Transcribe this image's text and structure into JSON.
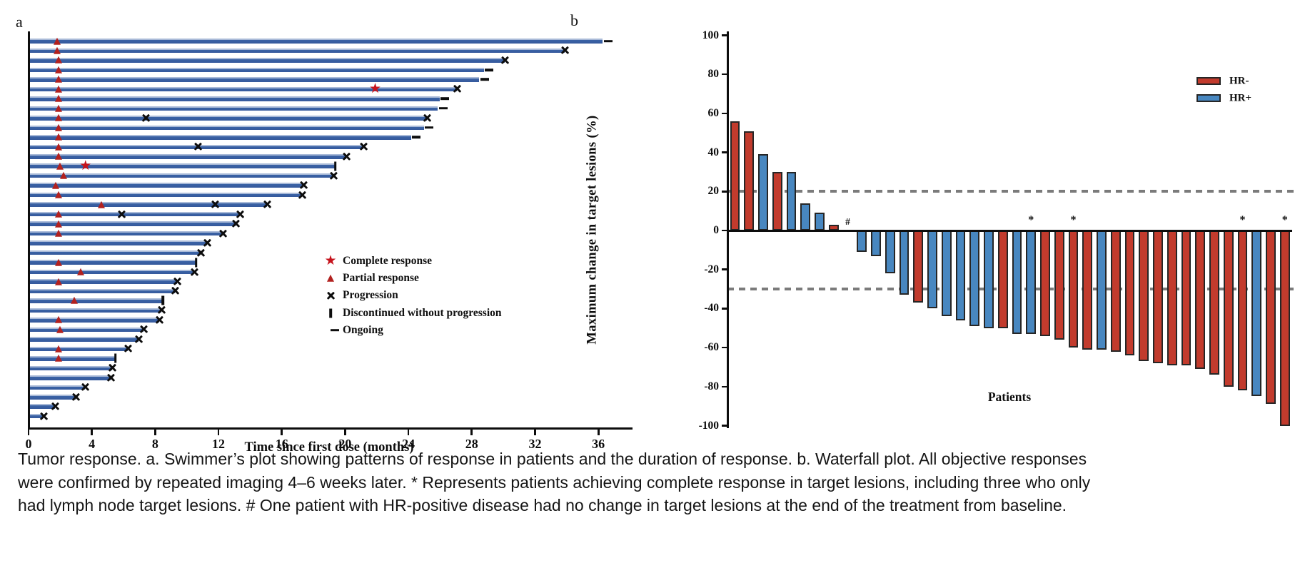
{
  "caption": "Tumor response. a. Swimmer’s plot showing patterns of response in patients and the duration of response. b. Waterfall plot. All objective responses were confirmed by repeated imaging 4–6 weeks later. * Represents patients achieving complete response in target lesions, including three who only had lymph node target lesions. # One patient with HR-positive disease had no change in target lesions at the end of the treatment from baseline.",
  "colors": {
    "swimmer_bar": "#3b63a6",
    "marker_red": "#b2211f",
    "star_red": "#c6131c",
    "marker_black": "#0d0d0d",
    "hr_negative": "#c23b2d",
    "hr_positive": "#4887c0",
    "bar_outline": "#262626",
    "threshold_gray": "#7b7b7b"
  },
  "chart_data": [
    {
      "type": "swimmer",
      "panel": "a",
      "xlabel": "Time since first dose (months)",
      "x_ticks": [
        0,
        4,
        8,
        12,
        16,
        20,
        24,
        28,
        32,
        36
      ],
      "xlim": [
        0,
        38
      ],
      "grid": false,
      "legend_position": "center-right",
      "legend": [
        {
          "marker": "star",
          "label": "Complete response"
        },
        {
          "marker": "triangle",
          "label": "Partial response"
        },
        {
          "marker": "cross",
          "label": "Progression"
        },
        {
          "marker": "vbar",
          "label": "Discontinued without progression"
        },
        {
          "marker": "dash",
          "label": "Ongoing"
        }
      ],
      "patients": [
        {
          "duration_months": 36.2,
          "partial_response_at": 1.8,
          "end": "ongoing"
        },
        {
          "duration_months": 33.8,
          "partial_response_at": 1.8,
          "end": "progression"
        },
        {
          "duration_months": 30.0,
          "partial_response_at": 1.9,
          "end": "progression"
        },
        {
          "duration_months": 28.7,
          "partial_response_at": 1.9,
          "end": "ongoing"
        },
        {
          "duration_months": 28.4,
          "partial_response_at": 1.9,
          "end": "ongoing"
        },
        {
          "duration_months": 27.0,
          "partial_response_at": 1.9,
          "complete_response_at": 21.9,
          "end": "progression"
        },
        {
          "duration_months": 25.9,
          "partial_response_at": 1.9,
          "end": "ongoing"
        },
        {
          "duration_months": 25.8,
          "partial_response_at": 1.9,
          "end": "ongoing"
        },
        {
          "duration_months": 25.1,
          "partial_response_at": 1.9,
          "progression_at": [
            7.4
          ],
          "end": "progression"
        },
        {
          "duration_months": 24.9,
          "partial_response_at": 1.9,
          "end": "ongoing"
        },
        {
          "duration_months": 24.1,
          "partial_response_at": 1.9,
          "end": "ongoing"
        },
        {
          "duration_months": 21.1,
          "partial_response_at": 1.9,
          "progression_at": [
            10.7
          ],
          "end": "progression"
        },
        {
          "duration_months": 20.0,
          "partial_response_at": 1.9,
          "end": "progression"
        },
        {
          "duration_months": 19.3,
          "partial_response_at": 2.0,
          "complete_response_at": 3.6,
          "end": "discontinued"
        },
        {
          "duration_months": 19.2,
          "partial_response_at": 2.2,
          "end": "progression"
        },
        {
          "duration_months": 17.3,
          "partial_response_at": 1.7,
          "end": "progression"
        },
        {
          "duration_months": 17.2,
          "partial_response_at": 1.9,
          "end": "progression"
        },
        {
          "duration_months": 15.0,
          "partial_response_at": 4.6,
          "progression_at": [
            11.8
          ],
          "end": "progression"
        },
        {
          "duration_months": 13.3,
          "partial_response_at": 1.9,
          "progression_at": [
            5.9
          ],
          "end": "progression"
        },
        {
          "duration_months": 13.0,
          "partial_response_at": 1.9,
          "end": "progression"
        },
        {
          "duration_months": 12.2,
          "partial_response_at": 1.9,
          "end": "progression"
        },
        {
          "duration_months": 11.2,
          "end": "progression"
        },
        {
          "duration_months": 10.8,
          "end": "progression"
        },
        {
          "duration_months": 10.5,
          "partial_response_at": 1.9,
          "end": "discontinued"
        },
        {
          "duration_months": 10.4,
          "partial_response_at": 3.3,
          "end": "progression"
        },
        {
          "duration_months": 9.3,
          "partial_response_at": 1.9,
          "end": "progression"
        },
        {
          "duration_months": 9.2,
          "end": "progression"
        },
        {
          "duration_months": 8.4,
          "partial_response_at": 2.9,
          "end": "discontinued"
        },
        {
          "duration_months": 8.3,
          "end": "progression"
        },
        {
          "duration_months": 8.2,
          "partial_response_at": 1.9,
          "end": "progression"
        },
        {
          "duration_months": 7.2,
          "partial_response_at": 2.0,
          "end": "progression"
        },
        {
          "duration_months": 6.9,
          "end": "progression"
        },
        {
          "duration_months": 6.2,
          "partial_response_at": 1.9,
          "end": "progression"
        },
        {
          "duration_months": 5.4,
          "partial_response_at": 1.9,
          "end": "discontinued"
        },
        {
          "duration_months": 5.2,
          "end": "progression"
        },
        {
          "duration_months": 5.1,
          "end": "progression"
        },
        {
          "duration_months": 3.5,
          "end": "progression"
        },
        {
          "duration_months": 2.9,
          "end": "progression"
        },
        {
          "duration_months": 1.6,
          "end": "progression"
        },
        {
          "duration_months": 0.9,
          "end": "progression"
        }
      ]
    },
    {
      "type": "bar",
      "panel": "b",
      "ylabel": "Maximum change in target lesions (%)",
      "xlabel": "Patients",
      "ylim": [
        -100,
        100
      ],
      "y_ticks": [
        100,
        80,
        60,
        40,
        20,
        0,
        -20,
        -40,
        -60,
        -80,
        -100
      ],
      "thresholds": [
        20,
        -30
      ],
      "grid": false,
      "legend_position": "top-right",
      "legend": [
        {
          "label": "HR-",
          "color": "#c23b2d"
        },
        {
          "label": "HR+",
          "color": "#4887c0"
        }
      ],
      "values": [
        {
          "value": 56,
          "group": "HR-"
        },
        {
          "value": 51,
          "group": "HR-"
        },
        {
          "value": 39,
          "group": "HR+"
        },
        {
          "value": 30,
          "group": "HR-"
        },
        {
          "value": 30,
          "group": "HR+"
        },
        {
          "value": 14,
          "group": "HR+"
        },
        {
          "value": 9,
          "group": "HR+"
        },
        {
          "value": 3,
          "group": "HR-"
        },
        {
          "value": 0,
          "group": "HR+",
          "note": "#"
        },
        {
          "value": -11,
          "group": "HR+"
        },
        {
          "value": -13,
          "group": "HR+"
        },
        {
          "value": -22,
          "group": "HR+"
        },
        {
          "value": -33,
          "group": "HR+"
        },
        {
          "value": -37,
          "group": "HR-"
        },
        {
          "value": -40,
          "group": "HR+"
        },
        {
          "value": -44,
          "group": "HR+"
        },
        {
          "value": -46,
          "group": "HR+"
        },
        {
          "value": -49,
          "group": "HR+"
        },
        {
          "value": -50,
          "group": "HR+"
        },
        {
          "value": -50,
          "group": "HR-"
        },
        {
          "value": -53,
          "group": "HR+"
        },
        {
          "value": -53,
          "group": "HR+",
          "note": "*"
        },
        {
          "value": -54,
          "group": "HR-"
        },
        {
          "value": -56,
          "group": "HR-"
        },
        {
          "value": -60,
          "group": "HR-",
          "note": "*"
        },
        {
          "value": -61,
          "group": "HR-"
        },
        {
          "value": -61,
          "group": "HR+"
        },
        {
          "value": -62,
          "group": "HR-"
        },
        {
          "value": -64,
          "group": "HR-"
        },
        {
          "value": -67,
          "group": "HR-"
        },
        {
          "value": -68,
          "group": "HR-"
        },
        {
          "value": -69,
          "group": "HR-"
        },
        {
          "value": -69,
          "group": "HR-"
        },
        {
          "value": -71,
          "group": "HR-"
        },
        {
          "value": -74,
          "group": "HR-"
        },
        {
          "value": -80,
          "group": "HR-"
        },
        {
          "value": -82,
          "group": "HR-",
          "note": "*"
        },
        {
          "value": -85,
          "group": "HR+"
        },
        {
          "value": -89,
          "group": "HR-"
        },
        {
          "value": -100,
          "group": "HR-",
          "note": "*"
        }
      ]
    }
  ]
}
